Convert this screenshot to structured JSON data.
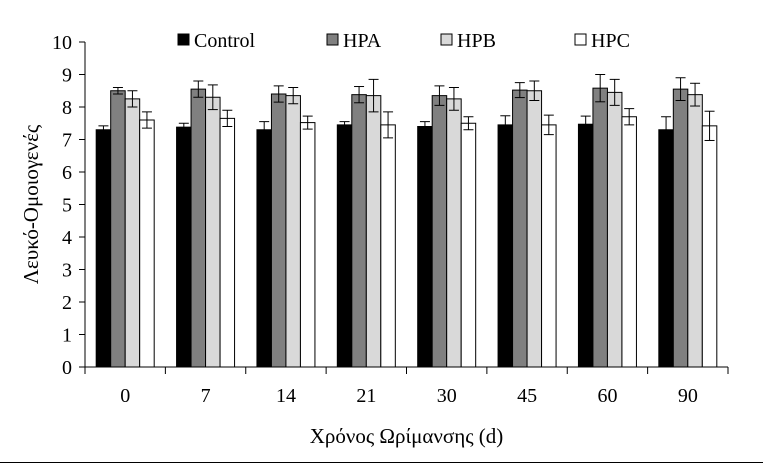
{
  "chart_data": {
    "type": "bar",
    "xlabel": "Χρόνος Ωρίμανσης (d)",
    "ylabel": "Λευκό-Ομοιογενές",
    "ylim": [
      0,
      10
    ],
    "yticks": [
      0,
      1,
      2,
      3,
      4,
      5,
      6,
      7,
      8,
      9,
      10
    ],
    "categories": [
      "0",
      "7",
      "14",
      "21",
      "30",
      "45",
      "60",
      "90"
    ],
    "legend_position": "top",
    "grid": false,
    "series": [
      {
        "name": "Control",
        "color": "#000000",
        "values": [
          7.3,
          7.38,
          7.3,
          7.45,
          7.4,
          7.45,
          7.47,
          7.3
        ],
        "errors": [
          0.12,
          0.12,
          0.25,
          0.1,
          0.15,
          0.28,
          0.25,
          0.4
        ]
      },
      {
        "name": "HPA",
        "color": "#808080",
        "values": [
          8.5,
          8.55,
          8.4,
          8.38,
          8.35,
          8.52,
          8.58,
          8.55
        ],
        "errors": [
          0.1,
          0.25,
          0.25,
          0.25,
          0.3,
          0.23,
          0.42,
          0.35
        ]
      },
      {
        "name": "HPB",
        "color": "#d9d9d9",
        "values": [
          8.25,
          8.3,
          8.35,
          8.35,
          8.25,
          8.5,
          8.45,
          8.38
        ],
        "errors": [
          0.25,
          0.38,
          0.25,
          0.5,
          0.35,
          0.3,
          0.4,
          0.35
        ]
      },
      {
        "name": "HPC",
        "color": "#ffffff",
        "values": [
          7.6,
          7.65,
          7.52,
          7.45,
          7.5,
          7.45,
          7.7,
          7.42
        ],
        "errors": [
          0.25,
          0.25,
          0.2,
          0.4,
          0.2,
          0.3,
          0.25,
          0.45
        ]
      }
    ]
  }
}
